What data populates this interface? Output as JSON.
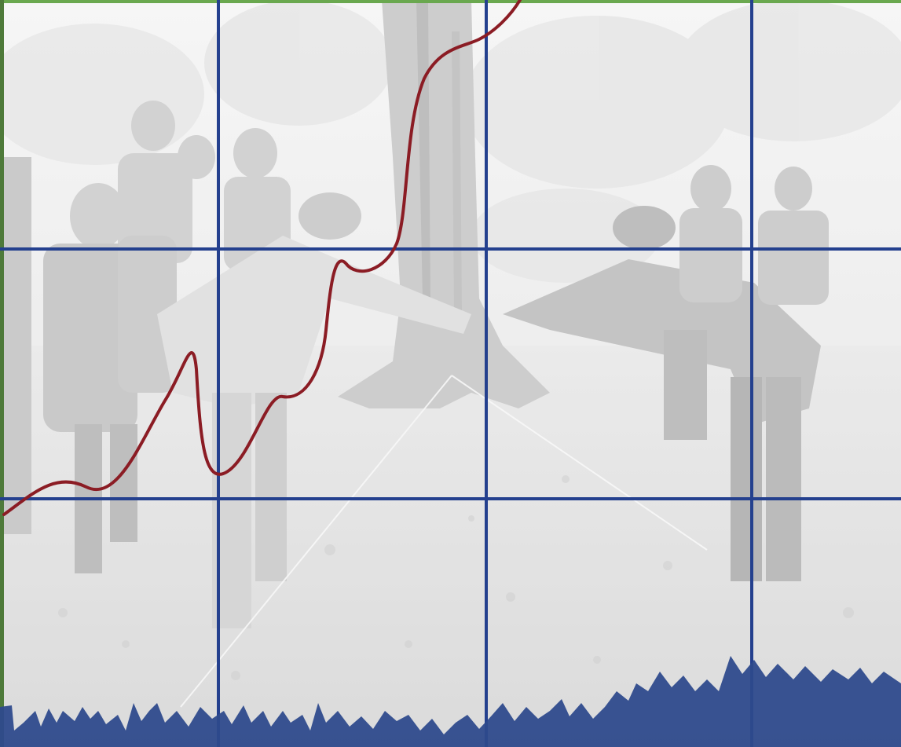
{
  "image": {
    "subject": "",
    "tint": "grayscale-washed"
  },
  "colors": {
    "grid_line": "#24408e",
    "curve": "#8b1c24",
    "top_bar": "#6aa84f",
    "bottom_jagged": "#2e4a8c",
    "photo_light": "#eeeeee",
    "photo_mid": "#cfcfcf",
    "photo_dark": "#9a9a9a"
  },
  "grid": {
    "rows": 3,
    "cols": 4
  }
}
